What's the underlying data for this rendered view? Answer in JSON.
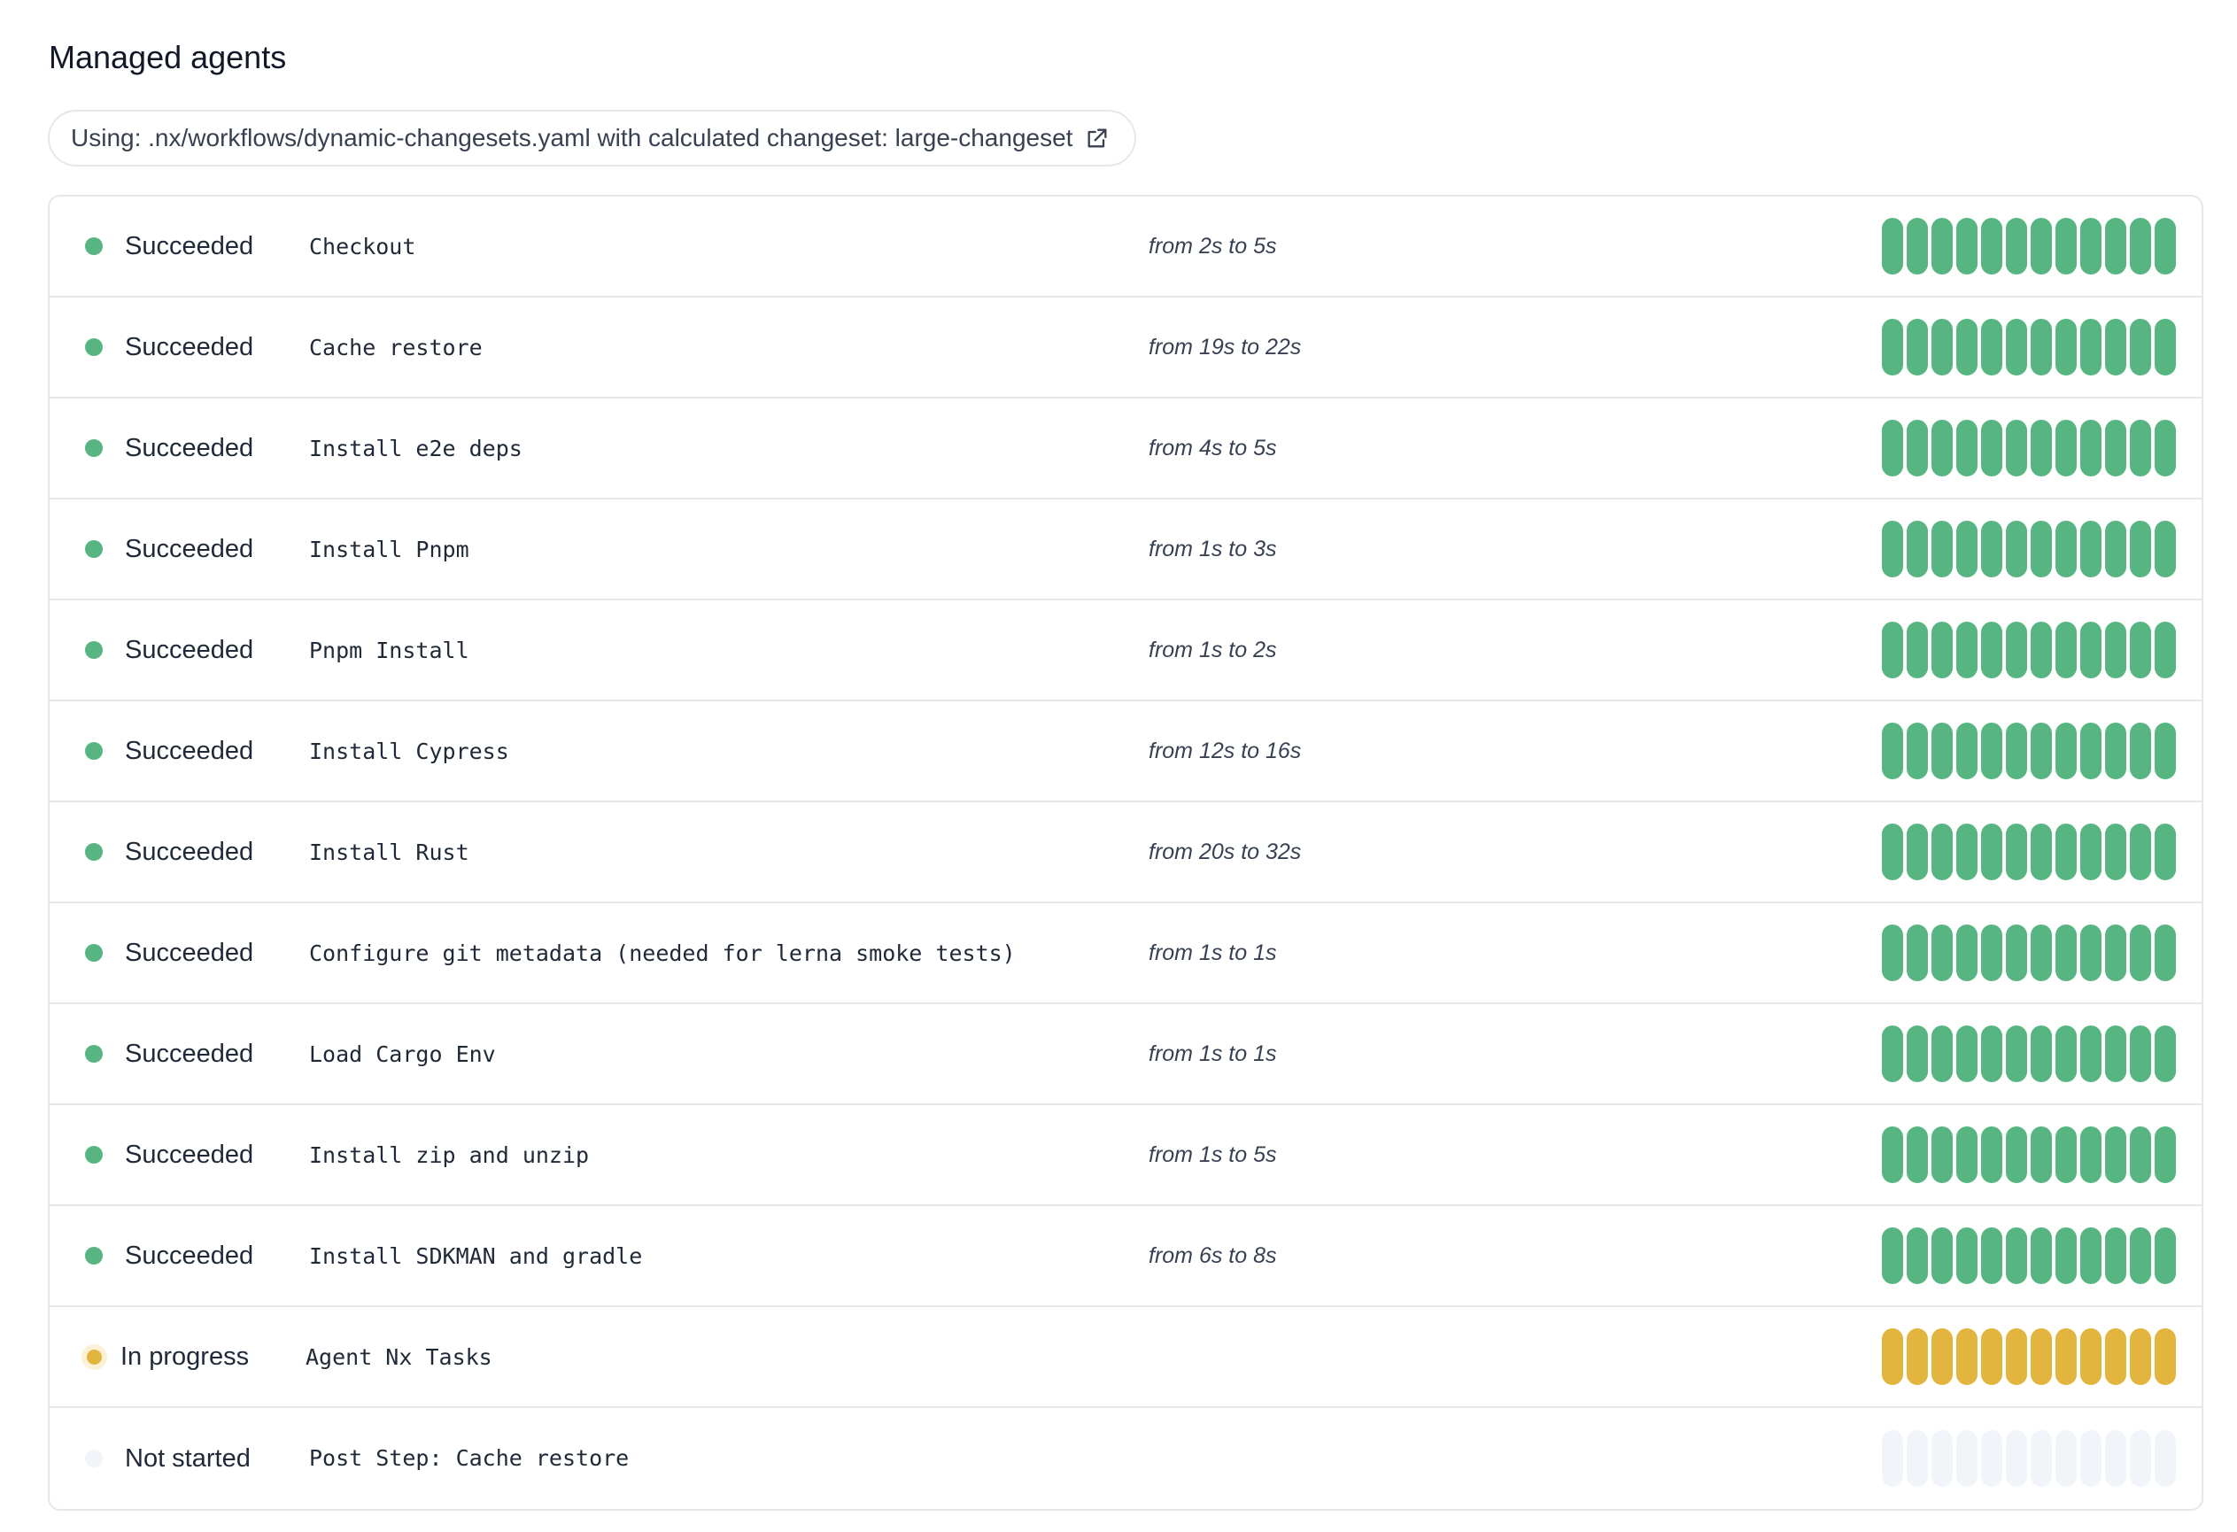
{
  "header": {
    "title": "Managed agents"
  },
  "source": {
    "text": "Using: .nx/workflows/dynamic-changesets.yaml with calculated changeset: large-changeset",
    "icon": "external-link-icon"
  },
  "colors": {
    "succeeded": "#57b582",
    "in_progress": "#e2b53e",
    "not_started": "#f1f5f9"
  },
  "steps": [
    {
      "status": "Succeeded",
      "state": "succeeded",
      "name": "Checkout",
      "duration": "from 2s to 5s"
    },
    {
      "status": "Succeeded",
      "state": "succeeded",
      "name": "Cache restore",
      "duration": "from 19s to 22s"
    },
    {
      "status": "Succeeded",
      "state": "succeeded",
      "name": "Install e2e deps",
      "duration": "from 4s to 5s"
    },
    {
      "status": "Succeeded",
      "state": "succeeded",
      "name": "Install Pnpm",
      "duration": "from 1s to 3s"
    },
    {
      "status": "Succeeded",
      "state": "succeeded",
      "name": "Pnpm Install",
      "duration": "from 1s to 2s"
    },
    {
      "status": "Succeeded",
      "state": "succeeded",
      "name": "Install Cypress",
      "duration": "from 12s to 16s"
    },
    {
      "status": "Succeeded",
      "state": "succeeded",
      "name": "Install Rust",
      "duration": "from 20s to 32s"
    },
    {
      "status": "Succeeded",
      "state": "succeeded",
      "name": "Configure git metadata (needed for lerna smoke tests)",
      "duration": "from 1s to 1s"
    },
    {
      "status": "Succeeded",
      "state": "succeeded",
      "name": "Load Cargo Env",
      "duration": "from 1s to 1s"
    },
    {
      "status": "Succeeded",
      "state": "succeeded",
      "name": "Install zip and unzip",
      "duration": "from 1s to 5s"
    },
    {
      "status": "Succeeded",
      "state": "succeeded",
      "name": "Install SDKMAN and gradle",
      "duration": "from 6s to 8s"
    },
    {
      "status": "In progress",
      "state": "in_progress",
      "name": "Agent Nx Tasks",
      "duration": ""
    },
    {
      "status": "Not started",
      "state": "not_started",
      "name": "Post Step: Cache restore",
      "duration": ""
    }
  ],
  "agent_count": 12
}
